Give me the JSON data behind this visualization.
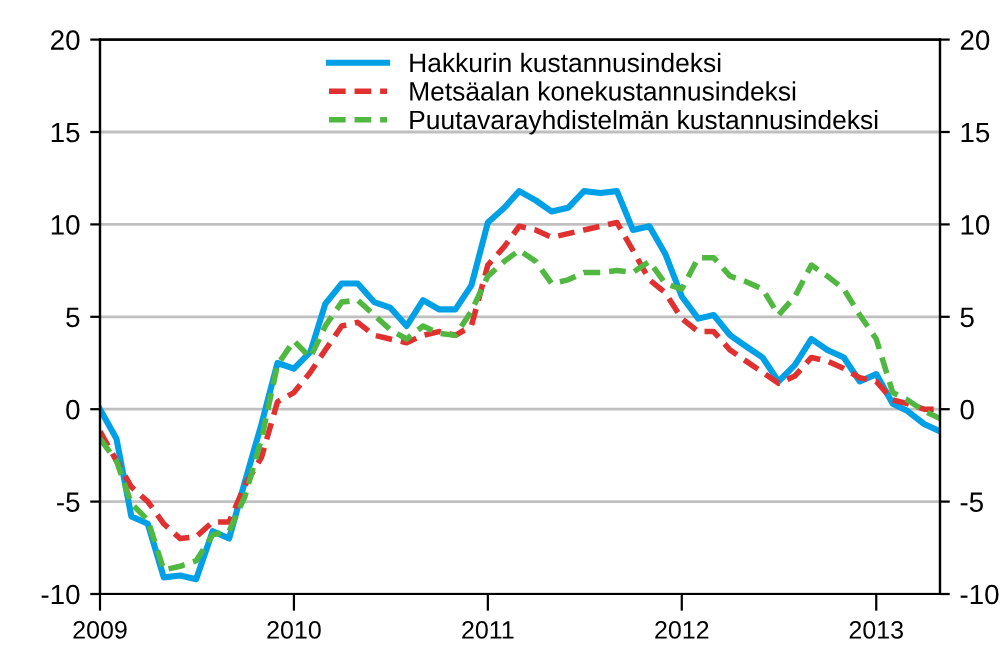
{
  "chart_data": {
    "type": "line",
    "x": [
      "2009-01",
      "2009-02",
      "2009-03",
      "2009-04",
      "2009-05",
      "2009-06",
      "2009-07",
      "2009-08",
      "2009-09",
      "2009-10",
      "2009-11",
      "2009-12",
      "2010-01",
      "2010-02",
      "2010-03",
      "2010-04",
      "2010-05",
      "2010-06",
      "2010-07",
      "2010-08",
      "2010-09",
      "2010-10",
      "2010-11",
      "2010-12",
      "2011-01",
      "2011-02",
      "2011-03",
      "2011-04",
      "2011-05",
      "2011-06",
      "2011-07",
      "2011-08",
      "2011-09",
      "2011-10",
      "2011-11",
      "2011-12",
      "2012-01",
      "2012-02",
      "2012-03",
      "2012-04",
      "2012-05",
      "2012-06",
      "2012-07",
      "2012-08",
      "2012-09",
      "2012-10",
      "2012-11",
      "2012-12",
      "2013-01",
      "2013-02",
      "2013-03",
      "2013-04",
      "2013-05"
    ],
    "series": [
      {
        "name": "Hakkurin kustannusindeksi",
        "color": "#00a0e6",
        "line_style": "solid",
        "values": [
          0,
          -1.6,
          -5.8,
          -6.2,
          -9.1,
          -9.0,
          -9.2,
          -6.6,
          -7.0,
          -3.9,
          -0.8,
          2.5,
          2.2,
          3.1,
          5.7,
          6.8,
          6.8,
          5.8,
          5.5,
          4.5,
          5.9,
          5.4,
          5.4,
          6.7,
          10.1,
          10.9,
          11.8,
          11.3,
          10.7,
          10.9,
          11.8,
          11.7,
          11.8,
          9.7,
          9.9,
          8.4,
          6.1,
          4.9,
          5.1,
          4.0,
          3.4,
          2.8,
          1.5,
          2.4,
          3.8,
          3.2,
          2.8,
          1.5,
          1.9,
          0.3,
          -0.1,
          -0.8,
          -1.2
        ]
      },
      {
        "name": "Metsäalan konekustannusindeksi",
        "color": "#e03030",
        "line_style": "dashed",
        "values": [
          -1.2,
          -2.8,
          -4.2,
          -5.0,
          -6.2,
          -7.0,
          -6.9,
          -6.1,
          -6.1,
          -4.1,
          -2.6,
          0.4,
          0.9,
          2.0,
          3.2,
          4.5,
          4.7,
          4.0,
          3.8,
          3.6,
          4.0,
          4.2,
          4.0,
          4.5,
          7.8,
          8.8,
          9.9,
          9.7,
          9.3,
          9.5,
          9.7,
          9.9,
          10.1,
          8.6,
          7.0,
          6.3,
          4.9,
          4.2,
          4.2,
          3.2,
          2.6,
          2.0,
          1.4,
          1.8,
          2.8,
          2.6,
          2.2,
          1.7,
          1.5,
          0.5,
          0.3,
          0,
          0
        ]
      },
      {
        "name": "Puutavarayhdistelmän kustannusindeksi",
        "color": "#50b840",
        "line_style": "dashed",
        "values": [
          -1.6,
          -2.8,
          -5.1,
          -6.0,
          -8.7,
          -8.5,
          -8.2,
          -6.8,
          -6.6,
          -4.7,
          -1.6,
          2.4,
          3.7,
          2.8,
          4.5,
          5.8,
          5.9,
          5.1,
          4.3,
          3.8,
          4.5,
          4.1,
          4.0,
          5.3,
          7.2,
          8.0,
          8.6,
          8.0,
          6.8,
          7.0,
          7.4,
          7.4,
          7.5,
          7.4,
          8.0,
          6.8,
          6.5,
          8.2,
          8.2,
          7.2,
          6.9,
          6.5,
          5.1,
          6.1,
          7.8,
          7.2,
          6.5,
          5.1,
          3.8,
          0.9,
          0.5,
          -0.1,
          -0.5
        ]
      }
    ],
    "xlim": [
      "2009-01",
      "2013-05"
    ],
    "xticks": [
      {
        "value": "2009-01",
        "label": "2009"
      },
      {
        "value": "2010-01",
        "label": "2010"
      },
      {
        "value": "2011-01",
        "label": "2011"
      },
      {
        "value": "2012-01",
        "label": "2012"
      },
      {
        "value": "2013-01",
        "label": "2013"
      }
    ],
    "ylim": [
      -10,
      20
    ],
    "yticks": [
      -10,
      -5,
      0,
      5,
      10,
      15,
      20
    ],
    "y2lim": [
      -10,
      20
    ],
    "y2ticks": [
      -10,
      -5,
      0,
      5,
      10,
      15,
      20
    ],
    "grid": "y",
    "legend": "top",
    "marker": "none"
  }
}
